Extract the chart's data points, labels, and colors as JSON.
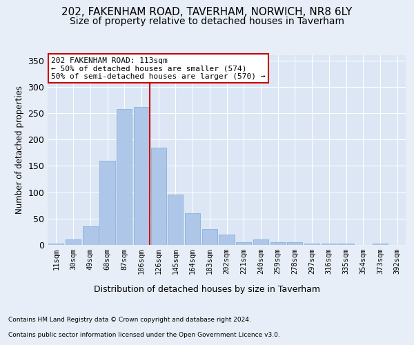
{
  "title1": "202, FAKENHAM ROAD, TAVERHAM, NORWICH, NR8 6LY",
  "title2": "Size of property relative to detached houses in Taverham",
  "xlabel": "Distribution of detached houses by size in Taverham",
  "ylabel": "Number of detached properties",
  "categories": [
    "11sqm",
    "30sqm",
    "49sqm",
    "68sqm",
    "87sqm",
    "106sqm",
    "126sqm",
    "145sqm",
    "164sqm",
    "183sqm",
    "202sqm",
    "221sqm",
    "240sqm",
    "259sqm",
    "278sqm",
    "297sqm",
    "316sqm",
    "335sqm",
    "354sqm",
    "373sqm",
    "392sqm"
  ],
  "values": [
    2,
    10,
    35,
    160,
    258,
    262,
    185,
    95,
    60,
    30,
    20,
    5,
    10,
    5,
    5,
    3,
    3,
    2,
    0,
    2,
    0
  ],
  "bar_color": "#aec6e8",
  "bar_edge_color": "#7aadd4",
  "vline_x": 5.5,
  "vline_color": "#cc0000",
  "annotation_text": "202 FAKENHAM ROAD: 113sqm\n← 50% of detached houses are smaller (574)\n50% of semi-detached houses are larger (570) →",
  "annotation_box_color": "#ffffff",
  "annotation_box_edge": "#cc0000",
  "background_color": "#e8eef7",
  "plot_bg_color": "#dce6f5",
  "footer1": "Contains HM Land Registry data © Crown copyright and database right 2024.",
  "footer2": "Contains public sector information licensed under the Open Government Licence v3.0.",
  "ylim": [
    0,
    360
  ],
  "title_fontsize": 11,
  "subtitle_fontsize": 10
}
